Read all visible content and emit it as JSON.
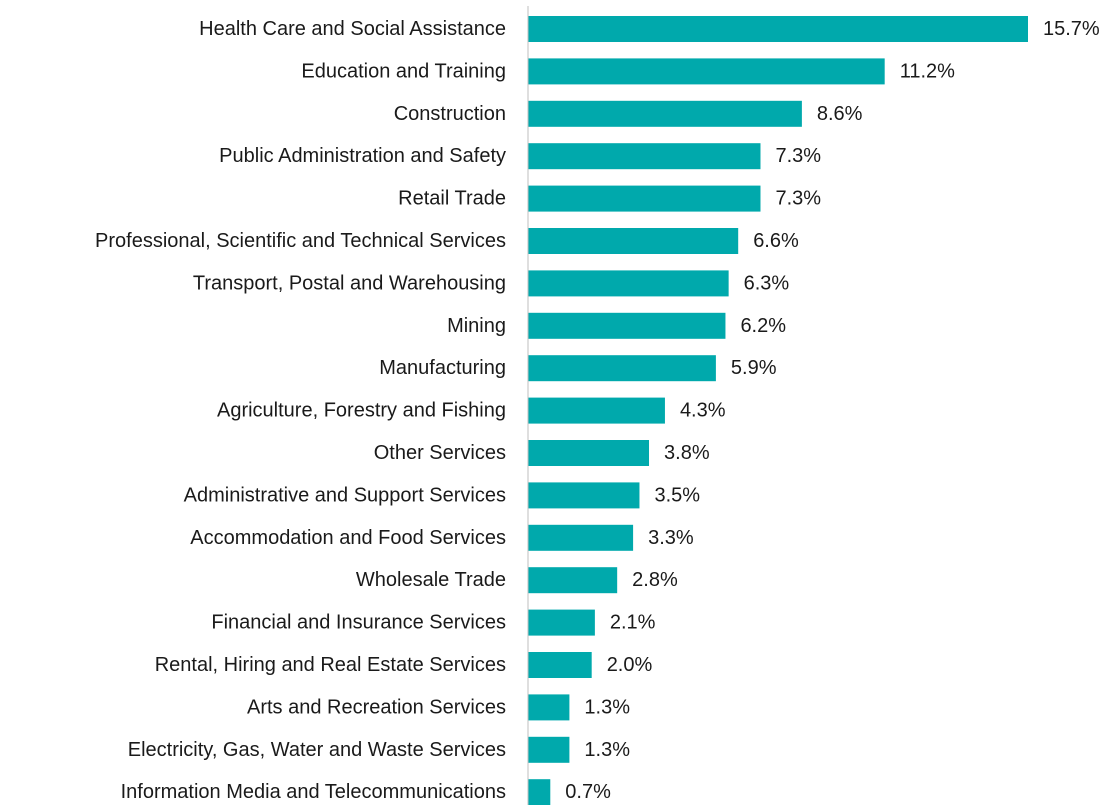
{
  "chart_data": {
    "type": "bar",
    "orientation": "horizontal",
    "categories": [
      "Health Care and Social Assistance",
      "Education and Training",
      "Construction",
      "Public Administration and Safety",
      "Retail Trade",
      "Professional, Scientific and Technical Services",
      "Transport, Postal and Warehousing",
      "Mining",
      "Manufacturing",
      "Agriculture, Forestry and Fishing",
      "Other Services",
      "Administrative and Support Services",
      "Accommodation and Food Services",
      "Wholesale Trade",
      "Financial and Insurance Services",
      "Rental, Hiring and Real Estate Services",
      "Arts and Recreation Services",
      "Electricity, Gas, Water and Waste Services",
      "Information Media and Telecommunications"
    ],
    "values": [
      15.7,
      11.2,
      8.6,
      7.3,
      7.3,
      6.6,
      6.3,
      6.2,
      5.9,
      4.3,
      3.8,
      3.5,
      3.3,
      2.8,
      2.1,
      2.0,
      1.3,
      1.3,
      0.7
    ],
    "value_labels": [
      "15.7%",
      "11.2%",
      "8.6%",
      "7.3%",
      "7.3%",
      "6.6%",
      "6.3%",
      "6.2%",
      "5.9%",
      "4.3%",
      "3.8%",
      "3.5%",
      "3.3%",
      "2.8%",
      "2.1%",
      "2.0%",
      "1.3%",
      "1.3%",
      "0.7%"
    ],
    "title": "",
    "xlabel": "",
    "ylabel": "",
    "xlim": [
      0,
      15.7
    ],
    "grid": false,
    "legend": "none",
    "bar_color": "#00A9AC",
    "text_color": "#1a1a1a",
    "axis_color": "#bfbfbf"
  }
}
